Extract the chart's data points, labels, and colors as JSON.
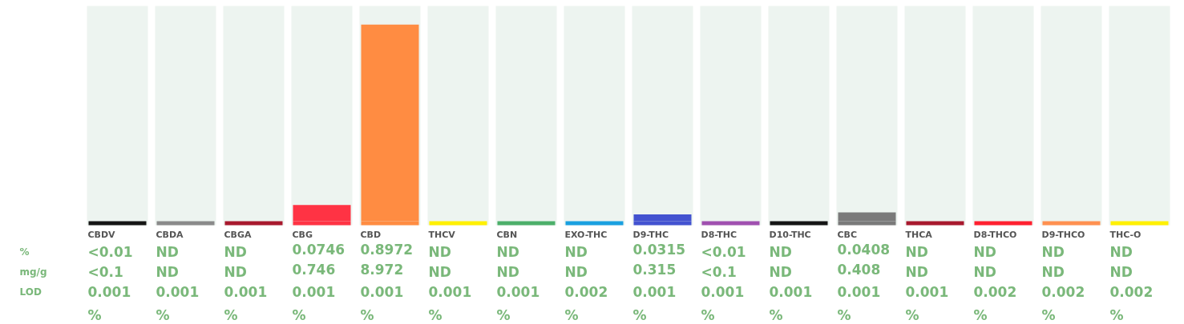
{
  "chart_data": {
    "type": "bar",
    "stacked": true,
    "categories": [
      "CBDV",
      "CBDA",
      "CBGA",
      "CBG",
      "CBD",
      "THCV",
      "CBN",
      "EXO-THC",
      "D9-THC",
      "D8-THC",
      "D10-THC",
      "CBC",
      "THCA",
      "D8-THCO",
      "D9-THCO",
      "THC-O"
    ],
    "series": [
      {
        "colors": [
          "#151515",
          "#8a8a8a",
          "#a8192e",
          "#ff3344",
          "#ff8c42",
          "#fff000",
          "#4caf6a",
          "#1aa0e0",
          "#4352d0",
          "#a050b0",
          "#151515",
          "#7a7a7a",
          "#a8192e",
          "#ff2030",
          "#ff9050",
          "#fff000"
        ],
        "values": [
          0.018,
          0.018,
          0.018,
          0.018,
          0.018,
          0.018,
          0.018,
          0.018,
          0.018,
          0.018,
          0.018,
          0.018,
          0.018,
          0.018,
          0.018,
          0.018
        ]
      },
      {
        "colors": [
          "#151515",
          "#8a8a8a",
          "#a8192e",
          "#ff3344",
          "#ff8c42",
          "#fff000",
          "#4caf6a",
          "#1aa0e0",
          "#4352d0",
          "#a050b0",
          "#151515",
          "#7a7a7a",
          "#a8192e",
          "#ff2030",
          "#ff9050",
          "#fff000"
        ],
        "values": [
          null,
          null,
          null,
          0.0746,
          0.8972,
          null,
          null,
          null,
          0.0315,
          null,
          null,
          0.0408,
          null,
          null,
          null,
          null
        ],
        "value_labels": [
          "<0.01",
          "ND",
          "ND",
          "0.0746",
          "0.8972",
          "ND",
          "ND",
          "ND",
          "0.0315",
          "<0.01",
          "ND",
          "0.0408",
          "ND",
          "ND",
          "ND",
          "ND"
        ]
      }
    ],
    "ylim": [
      0,
      1
    ],
    "bands": [
      {
        "axis": "y",
        "from": 0,
        "to": 1,
        "color": "#edf4f0"
      }
    ],
    "annotations": [
      "%",
      "mg/g",
      "LOD",
      "<0.1",
      "ND",
      "ND",
      "0.746",
      "8.972",
      "ND",
      "ND",
      "ND",
      "0.315",
      "<0.1",
      "ND",
      "0.408",
      "ND",
      "ND",
      "ND",
      "ND",
      "0.001 %",
      "0.001 %",
      "0.001 %",
      "0.001 %",
      "0.001 %",
      "0.001 %",
      "0.001 %",
      "0.002 %",
      "0.001 %",
      "0.001 %",
      "0.001 %",
      "0.001 %",
      "0.001 %",
      "0.002 %",
      "0.002 %",
      "0.002 %"
    ]
  }
}
